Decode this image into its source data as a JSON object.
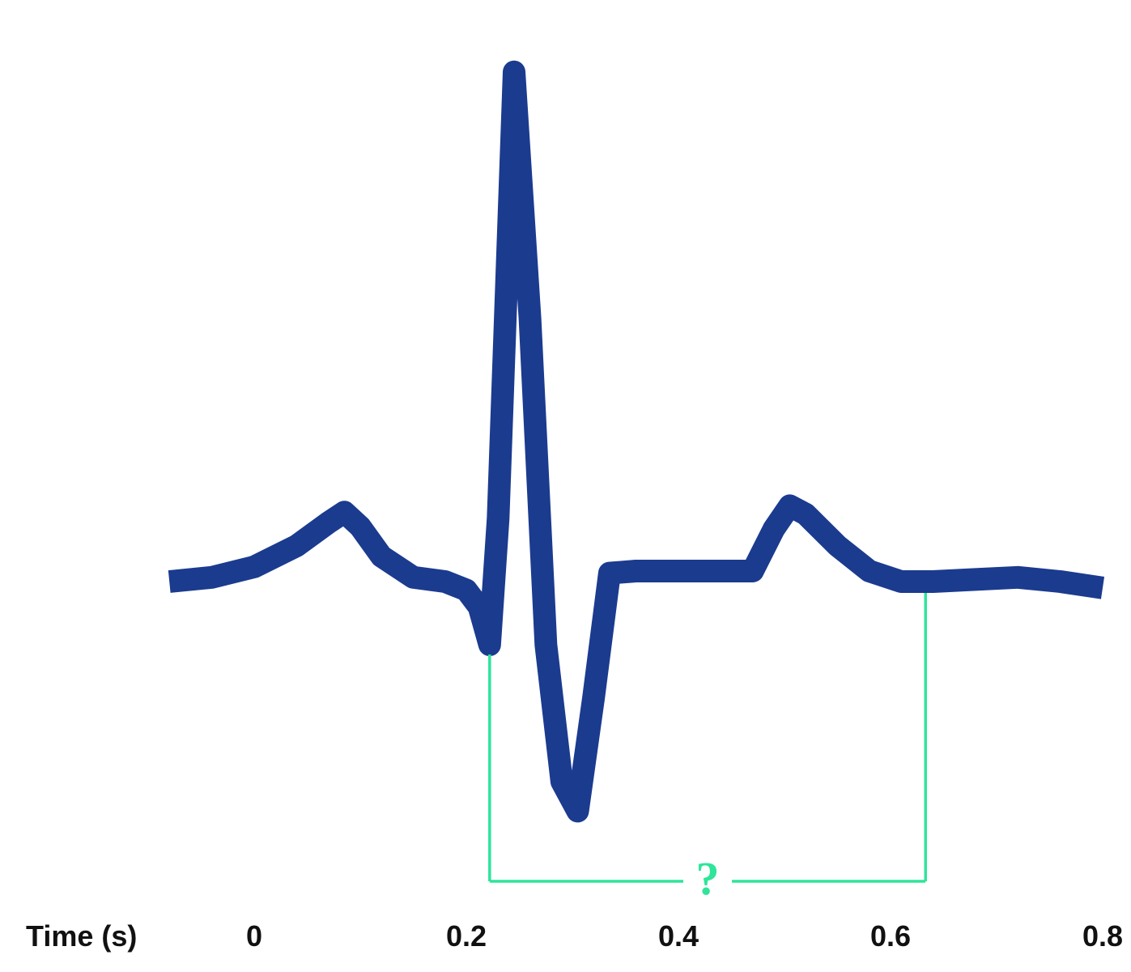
{
  "chart_data": {
    "type": "line",
    "xlabel": "Time (s)",
    "ticks": [
      "0",
      "0.2",
      "0.4",
      "0.6",
      "0.8"
    ],
    "tick_values": [
      0,
      0.2,
      0.4,
      0.6,
      0.8
    ],
    "xlim": [
      -0.08,
      0.82
    ],
    "ylim": [
      -1.2,
      2.4
    ],
    "grid": false,
    "colors": {
      "trace": "#1b3b8f",
      "bracket": "#2ee59a"
    },
    "series": [
      {
        "x": [
          -0.08,
          -0.04,
          0.0,
          0.04,
          0.07,
          0.085,
          0.1,
          0.12,
          0.15,
          0.18,
          0.2,
          0.212,
          0.222,
          0.23,
          0.245,
          0.26,
          0.275,
          0.29,
          0.305,
          0.32,
          0.335,
          0.36,
          0.4,
          0.44,
          0.47,
          0.49,
          0.505,
          0.52,
          0.55,
          0.58,
          0.61,
          0.64,
          0.68,
          0.72,
          0.76,
          0.8
        ],
        "y": [
          0.0,
          0.02,
          0.07,
          0.17,
          0.28,
          0.33,
          0.26,
          0.12,
          0.02,
          0.0,
          -0.04,
          -0.12,
          -0.3,
          0.3,
          2.42,
          1.25,
          -0.3,
          -0.95,
          -1.09,
          -0.55,
          0.04,
          0.05,
          0.05,
          0.05,
          0.05,
          0.25,
          0.36,
          0.32,
          0.17,
          0.05,
          0.0,
          0.0,
          0.01,
          0.02,
          0.0,
          -0.03
        ]
      }
    ],
    "bracket": {
      "start": 0.222,
      "end": 0.633,
      "label": "?"
    }
  }
}
